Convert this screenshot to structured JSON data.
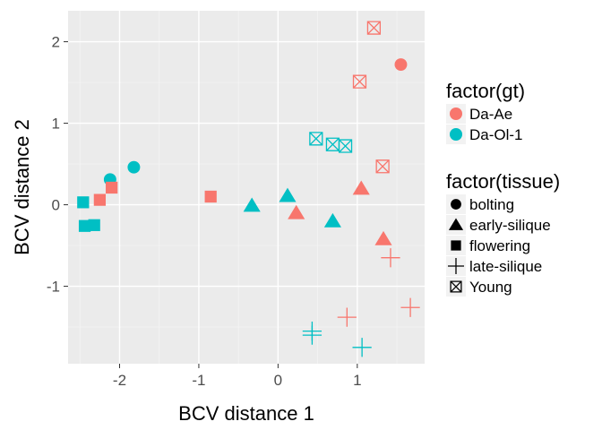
{
  "chart_data": {
    "type": "scatter",
    "xlabel": "BCV distance 1",
    "ylabel": "BCV distance 2",
    "xlim": [
      -2.65,
      1.85
    ],
    "ylim": [
      -1.95,
      2.38
    ],
    "x_ticks": [
      -2,
      -1,
      0,
      1
    ],
    "y_ticks": [
      -1,
      0,
      1,
      2
    ],
    "grid": true,
    "legend_position": "right",
    "color_legend": {
      "title": "factor(gt)",
      "entries": [
        {
          "label": "Da-Ae",
          "color": "#F8766D"
        },
        {
          "label": "Da-Ol-1",
          "color": "#00BFC4"
        }
      ]
    },
    "shape_legend": {
      "title": "factor(tissue)",
      "entries": [
        {
          "label": "bolting",
          "shape": "circle"
        },
        {
          "label": "early-silique",
          "shape": "triangle"
        },
        {
          "label": "flowering",
          "shape": "square"
        },
        {
          "label": "late-silique",
          "shape": "plus"
        },
        {
          "label": "Young",
          "shape": "boxed-x"
        }
      ]
    },
    "points": [
      {
        "x": 1.55,
        "y": 1.72,
        "gt": "Da-Ae",
        "tissue": "bolting"
      },
      {
        "x": -2.12,
        "y": 0.31,
        "gt": "Da-Ol-1",
        "tissue": "bolting"
      },
      {
        "x": -1.82,
        "y": 0.46,
        "gt": "Da-Ol-1",
        "tissue": "bolting"
      },
      {
        "x": 1.05,
        "y": 0.2,
        "gt": "Da-Ae",
        "tissue": "early-silique"
      },
      {
        "x": 0.23,
        "y": -0.1,
        "gt": "Da-Ae",
        "tissue": "early-silique"
      },
      {
        "x": 1.33,
        "y": -0.42,
        "gt": "Da-Ae",
        "tissue": "early-silique"
      },
      {
        "x": 0.12,
        "y": 0.11,
        "gt": "Da-Ol-1",
        "tissue": "early-silique"
      },
      {
        "x": -0.33,
        "y": -0.01,
        "gt": "Da-Ol-1",
        "tissue": "early-silique"
      },
      {
        "x": 0.69,
        "y": -0.2,
        "gt": "Da-Ol-1",
        "tissue": "early-silique"
      },
      {
        "x": -2.1,
        "y": 0.21,
        "gt": "Da-Ae",
        "tissue": "flowering"
      },
      {
        "x": -2.25,
        "y": 0.06,
        "gt": "Da-Ae",
        "tissue": "flowering"
      },
      {
        "x": -0.85,
        "y": 0.1,
        "gt": "Da-Ae",
        "tissue": "flowering"
      },
      {
        "x": -2.46,
        "y": 0.03,
        "gt": "Da-Ol-1",
        "tissue": "flowering"
      },
      {
        "x": -2.44,
        "y": -0.26,
        "gt": "Da-Ol-1",
        "tissue": "flowering"
      },
      {
        "x": -2.32,
        "y": -0.25,
        "gt": "Da-Ol-1",
        "tissue": "flowering"
      },
      {
        "x": 1.42,
        "y": -0.65,
        "gt": "Da-Ae",
        "tissue": "late-silique"
      },
      {
        "x": 1.67,
        "y": -1.26,
        "gt": "Da-Ae",
        "tissue": "late-silique"
      },
      {
        "x": 0.87,
        "y": -1.38,
        "gt": "Da-Ae",
        "tissue": "late-silique"
      },
      {
        "x": 0.43,
        "y": -1.55,
        "gt": "Da-Ol-1",
        "tissue": "late-silique"
      },
      {
        "x": 0.43,
        "y": -1.6,
        "gt": "Da-Ol-1",
        "tissue": "late-silique"
      },
      {
        "x": 1.06,
        "y": -1.75,
        "gt": "Da-Ol-1",
        "tissue": "late-silique"
      },
      {
        "x": 1.21,
        "y": 2.17,
        "gt": "Da-Ae",
        "tissue": "Young"
      },
      {
        "x": 1.03,
        "y": 1.51,
        "gt": "Da-Ae",
        "tissue": "Young"
      },
      {
        "x": 1.32,
        "y": 0.47,
        "gt": "Da-Ae",
        "tissue": "Young"
      },
      {
        "x": 0.48,
        "y": 0.81,
        "gt": "Da-Ol-1",
        "tissue": "Young"
      },
      {
        "x": 0.69,
        "y": 0.74,
        "gt": "Da-Ol-1",
        "tissue": "Young"
      },
      {
        "x": 0.85,
        "y": 0.72,
        "gt": "Da-Ol-1",
        "tissue": "Young"
      }
    ]
  }
}
